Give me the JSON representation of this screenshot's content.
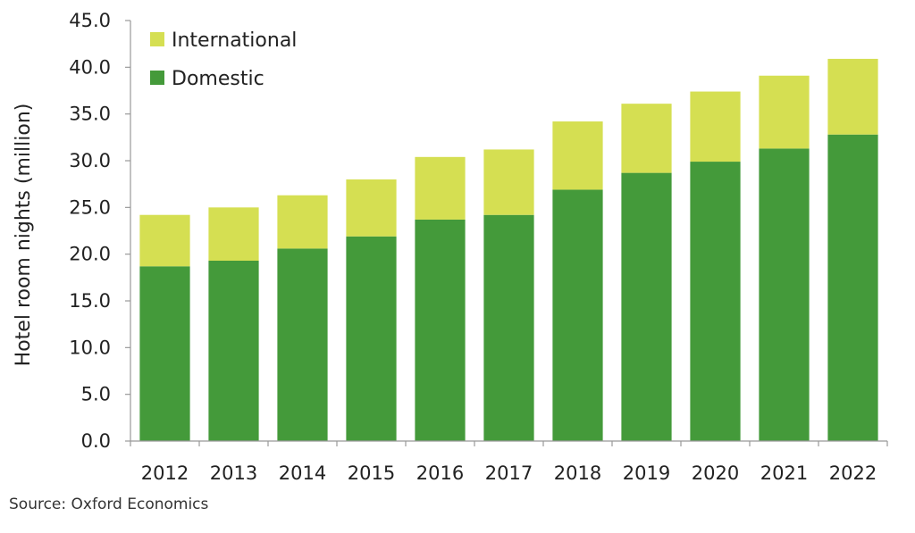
{
  "chart_data": {
    "type": "bar",
    "stacked": true,
    "categories": [
      "2012",
      "2013",
      "2014",
      "2015",
      "2016",
      "2017",
      "2018",
      "2019",
      "2020",
      "2021",
      "2022"
    ],
    "series": [
      {
        "name": "Domestic",
        "color": "#449a3a",
        "values": [
          18.7,
          19.3,
          20.6,
          21.9,
          23.7,
          24.2,
          26.9,
          28.7,
          29.9,
          31.3,
          32.8
        ]
      },
      {
        "name": "International",
        "color": "#d5df52",
        "values": [
          5.5,
          5.7,
          5.7,
          6.1,
          6.7,
          7.0,
          7.3,
          7.4,
          7.5,
          7.8,
          8.1
        ]
      }
    ],
    "ylabel": "Hotel room nights (million)",
    "xlabel": "",
    "ylim": [
      0,
      45
    ],
    "ytick_values": [
      0,
      5,
      10,
      15,
      20,
      25,
      30,
      35,
      40,
      45
    ],
    "ytick_labels": [
      "0.0",
      "5.0",
      "10.0",
      "15.0",
      "20.0",
      "25.0",
      "30.0",
      "35.0",
      "40.0",
      "45.0"
    ],
    "legend": {
      "position": "top-left",
      "order": [
        "International",
        "Domestic"
      ]
    },
    "grid": false
  },
  "source_note": "Source:  Oxford Economics"
}
